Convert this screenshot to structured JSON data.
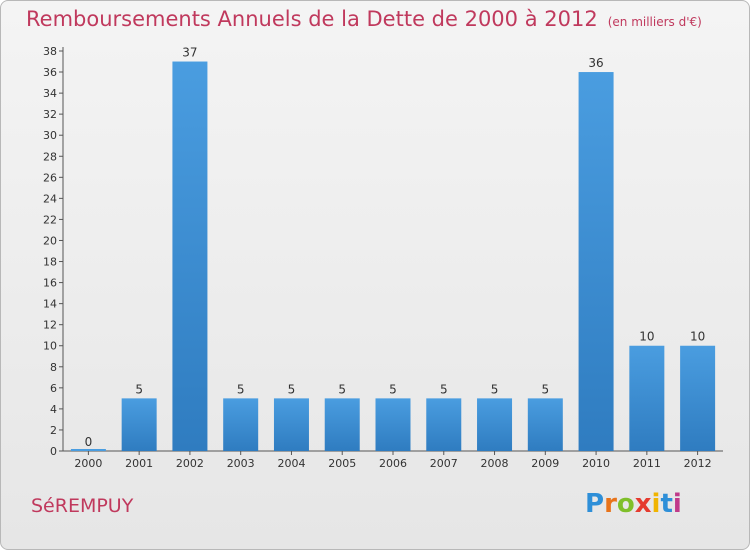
{
  "title": "Remboursements Annuels de la Dette de 2000 à 2012",
  "unit_note": "(en milliers d'€)",
  "town": "SéREMPUY",
  "logo": {
    "text": "Proxiti",
    "letter_colors": [
      "#2e8fd8",
      "#e8731a",
      "#7fbf2a",
      "#e53b2f",
      "#f0b400",
      "#2e8fd8",
      "#c03a8a"
    ]
  },
  "colors": {
    "title": "#c0395d",
    "bar": "#4a9de0",
    "bar_dark": "#2f7cc0",
    "grid": "#c8c8c8"
  },
  "chart_data": {
    "type": "bar",
    "categories": [
      "2000",
      "2001",
      "2002",
      "2003",
      "2004",
      "2005",
      "2006",
      "2007",
      "2008",
      "2009",
      "2010",
      "2011",
      "2012"
    ],
    "values": [
      0,
      5,
      37,
      5,
      5,
      5,
      5,
      5,
      5,
      5,
      36,
      10,
      10
    ],
    "ylim": [
      0,
      38
    ],
    "yticks": [
      0,
      2,
      4,
      6,
      8,
      10,
      12,
      14,
      16,
      18,
      20,
      22,
      24,
      26,
      28,
      30,
      32,
      34,
      36,
      38
    ],
    "grid": false
  }
}
